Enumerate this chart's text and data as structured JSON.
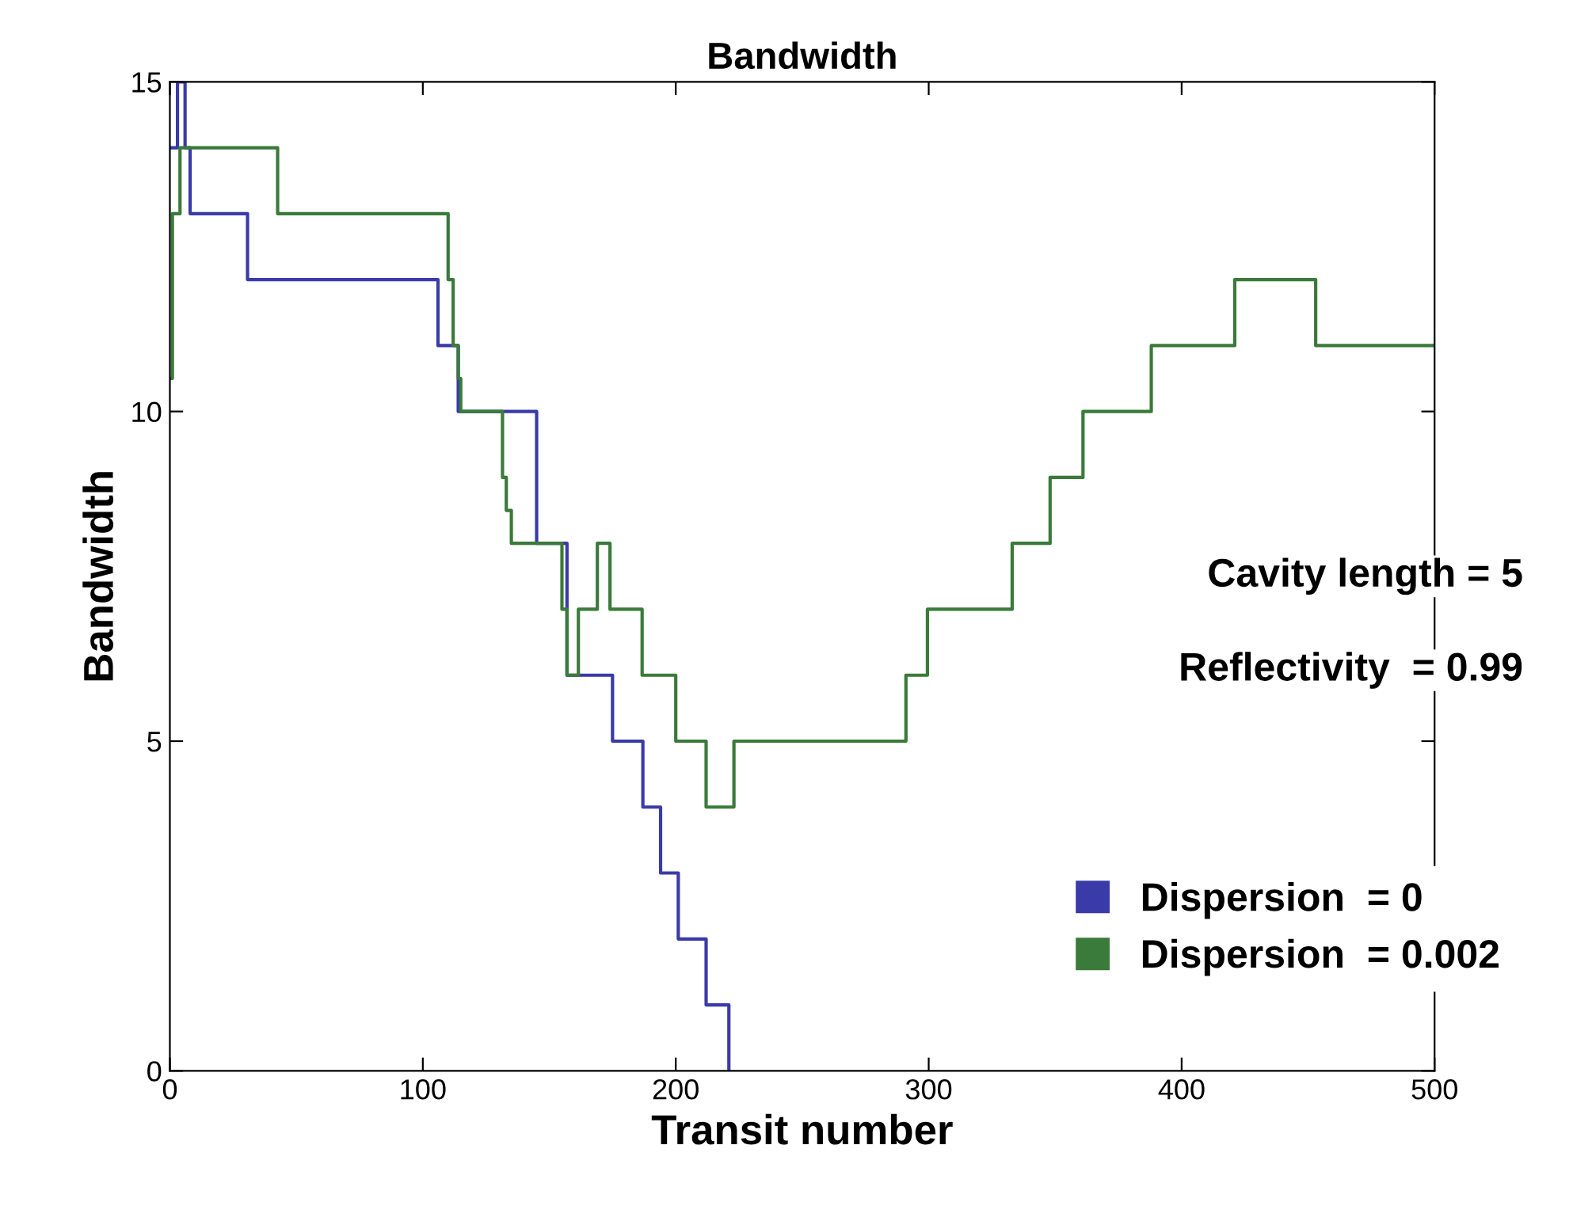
{
  "chart_data": {
    "type": "step",
    "title": "Bandwidth",
    "xlabel": "Transit number",
    "ylabel": "Bandwidth",
    "xlim": [
      0,
      500
    ],
    "xticks": [
      0,
      100,
      200,
      300,
      400,
      500
    ],
    "ylim": [
      0,
      15
    ],
    "yticks": [
      0,
      5,
      10,
      15
    ],
    "grid": false,
    "legend": "bottom right",
    "annotations": [
      "Cavity length = 5",
      "Reflectivity  = 0.99"
    ],
    "series": [
      {
        "name": "Dispersion  = 0",
        "color": "#3a3aa8",
        "x": [
          0,
          3,
          6,
          8,
          30.7,
          106,
          114,
          145,
          157,
          175,
          187,
          194,
          201,
          212,
          221
        ],
        "values": [
          14,
          15,
          14,
          13,
          12,
          11,
          10,
          8,
          6,
          5,
          4,
          3,
          2,
          1,
          0
        ]
      },
      {
        "name": "Dispersion  = 0.002",
        "color": "#3a7a3a",
        "x": [
          0,
          1,
          4,
          42.6,
          110,
          112,
          114,
          115,
          131.5,
          133,
          135,
          155,
          157,
          161.5,
          169,
          174,
          186.7,
          200,
          212,
          223,
          291,
          299.5,
          333,
          348,
          361,
          388,
          421,
          453,
          500
        ],
        "values": [
          10.5,
          13,
          14,
          13,
          12,
          11,
          10.5,
          10,
          9,
          8.5,
          8,
          7,
          6,
          7,
          8,
          7,
          6,
          5,
          4,
          5,
          6,
          7,
          8,
          9,
          10,
          11,
          12,
          11,
          11
        ]
      }
    ]
  }
}
